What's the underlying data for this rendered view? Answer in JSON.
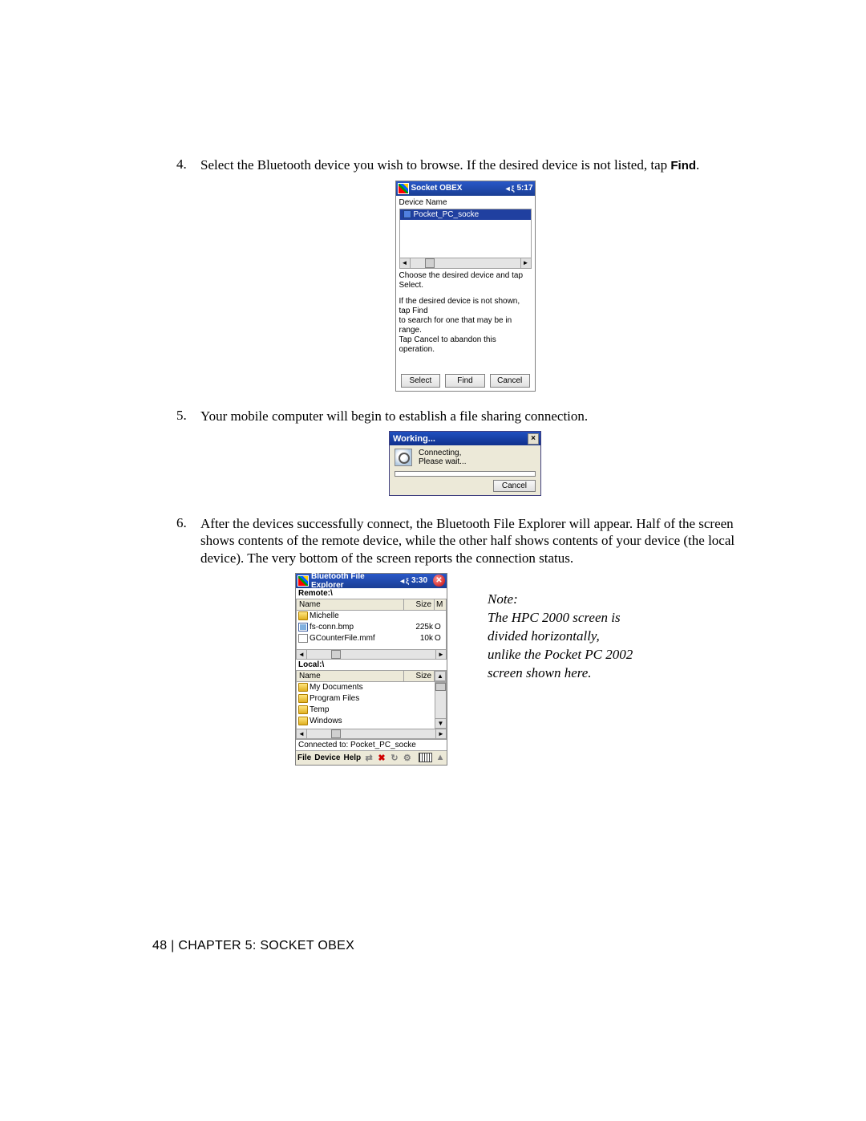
{
  "steps": {
    "s4": {
      "num": "4.",
      "text_a": "Select the Bluetooth device you wish to browse. If the desired device is not listed, tap ",
      "text_b": "Find",
      "text_c": "."
    },
    "s5": {
      "num": "5.",
      "text": "Your mobile computer will begin to establish a file sharing connection."
    },
    "s6": {
      "num": "6.",
      "text": "After the devices successfully connect, the Bluetooth File Explorer will appear. Half of the screen shows contents of the remote device, while the other half shows contents of your device (the local device). The very bottom of the screen reports the connection status."
    }
  },
  "obex": {
    "title": "Socket OBEX",
    "time": "5:17",
    "device_label": "Device Name",
    "selected_device": "Pocket_PC_socke",
    "instr1": "Choose the desired device and tap Select.",
    "instr2a": "If the desired device is not shown, tap Find",
    "instr2b": "to search for one that may be in range.",
    "instr2c": "Tap Cancel to abandon this operation.",
    "btn_select": "Select",
    "btn_find": "Find",
    "btn_cancel": "Cancel"
  },
  "working": {
    "title": "Working...",
    "line1": "Connecting,",
    "line2": "Please wait...",
    "cancel": "Cancel"
  },
  "bfe": {
    "title": "Bluetooth File Explorer",
    "time": "3:30",
    "remote_label": "Remote:\\",
    "local_label": "Local:\\",
    "col_name": "Name",
    "col_size": "Size",
    "col_m": "M",
    "remote_files": [
      {
        "icon": "folder",
        "name": "Michelle",
        "size": "",
        "ext": ""
      },
      {
        "icon": "bmp",
        "name": "fs-conn.bmp",
        "size": "225k",
        "ext": "O"
      },
      {
        "icon": "file",
        "name": "GCounterFile.mmf",
        "size": "10k",
        "ext": "O"
      }
    ],
    "local_files": [
      {
        "icon": "folder",
        "name": "My Documents"
      },
      {
        "icon": "folder",
        "name": "Program Files"
      },
      {
        "icon": "folder",
        "name": "Temp"
      },
      {
        "icon": "folder",
        "name": "Windows"
      }
    ],
    "status": "Connected to: Pocket_PC_socke",
    "menu_file": "File",
    "menu_device": "Device",
    "menu_help": "Help"
  },
  "note": {
    "heading": "Note:",
    "body": "The HPC 2000 screen is divided horizontally, unlike the Pocket PC 2002 screen shown here."
  },
  "footer": "48  | CHAPTER 5: SOCKET OBEX"
}
